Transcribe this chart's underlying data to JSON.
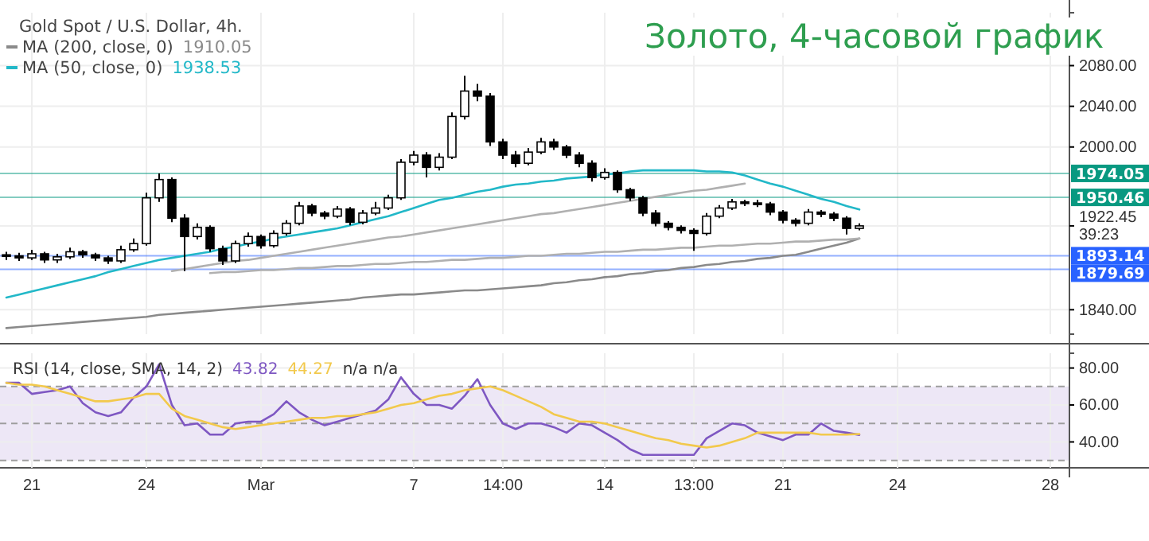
{
  "chart_data": [
    {
      "type": "candlestick",
      "title": "Gold Spot / U.S. Dollar, 4h.",
      "subtitle": "Золото, 4-часовой график",
      "legend": "top left",
      "grid": true,
      "categories": [
        null,
        null,
        null,
        null,
        null,
        null,
        null,
        null,
        null,
        null,
        null,
        null,
        null,
        null,
        null,
        null,
        null,
        null,
        null,
        null,
        null,
        null,
        null,
        null,
        null,
        null,
        null,
        null,
        null,
        null,
        null,
        null,
        null,
        null,
        null,
        null,
        null,
        null,
        null,
        null,
        null,
        null,
        null,
        null,
        null,
        null,
        null,
        null,
        null,
        null,
        null,
        null,
        null,
        null,
        null,
        null,
        null,
        null,
        null,
        null,
        null,
        null,
        null,
        null,
        null,
        null,
        null,
        null,
        null,
        null,
        null,
        null,
        null,
        null,
        null,
        null,
        null,
        null,
        null,
        null,
        null,
        null,
        null,
        null
      ],
      "ylim": [
        1816,
        2132
      ],
      "yticks": [
        {
          "value": 1840,
          "label": "1840.00"
        },
        {
          "value": 1922.45,
          "label": "1922.45\n39:23"
        },
        {
          "value": 2000,
          "label": "2000.00"
        },
        {
          "value": 2040,
          "label": "2040.00"
        },
        {
          "value": 2080,
          "label": "2080.00"
        }
      ],
      "ohlc": [
        [
          1894,
          1897,
          1889,
          1893
        ],
        [
          1893,
          1896,
          1888,
          1891
        ],
        [
          1891,
          1899,
          1889,
          1895
        ],
        [
          1895,
          1897,
          1886,
          1889
        ],
        [
          1889,
          1895,
          1886,
          1892
        ],
        [
          1892,
          1901,
          1890,
          1897
        ],
        [
          1897,
          1899,
          1891,
          1894
        ],
        [
          1894,
          1896,
          1888,
          1891
        ],
        [
          1891,
          1893,
          1885,
          1888
        ],
        [
          1888,
          1903,
          1886,
          1899
        ],
        [
          1899,
          1910,
          1897,
          1905
        ],
        [
          1905,
          1955,
          1903,
          1950
        ],
        [
          1950,
          1974,
          1946,
          1968
        ],
        [
          1968,
          1970,
          1926,
          1930
        ],
        [
          1930,
          1934,
          1878,
          1912
        ],
        [
          1912,
          1925,
          1909,
          1921
        ],
        [
          1921,
          1923,
          1897,
          1900
        ],
        [
          1900,
          1903,
          1884,
          1888
        ],
        [
          1888,
          1908,
          1886,
          1905
        ],
        [
          1905,
          1916,
          1902,
          1912
        ],
        [
          1912,
          1914,
          1900,
          1903
        ],
        [
          1903,
          1918,
          1901,
          1915
        ],
        [
          1915,
          1928,
          1913,
          1925
        ],
        [
          1925,
          1946,
          1923,
          1942
        ],
        [
          1942,
          1944,
          1932,
          1935
        ],
        [
          1935,
          1937,
          1929,
          1932
        ],
        [
          1932,
          1942,
          1930,
          1939
        ],
        [
          1939,
          1941,
          1923,
          1926
        ],
        [
          1926,
          1938,
          1924,
          1935
        ],
        [
          1935,
          1946,
          1933,
          1940
        ],
        [
          1940,
          1953,
          1938,
          1950
        ],
        [
          1950,
          1988,
          1948,
          1985
        ],
        [
          1985,
          1996,
          1982,
          1992
        ],
        [
          1992,
          1995,
          1970,
          1980
        ],
        [
          1980,
          1994,
          1977,
          1990
        ],
        [
          1990,
          2034,
          1988,
          2030
        ],
        [
          2030,
          2070,
          2027,
          2055
        ],
        [
          2055,
          2062,
          2045,
          2050
        ],
        [
          2050,
          2053,
          2001,
          2005
        ],
        [
          2005,
          2008,
          1988,
          1992
        ],
        [
          1992,
          1996,
          1980,
          1984
        ],
        [
          1984,
          1999,
          1982,
          1995
        ],
        [
          1995,
          2009,
          1993,
          2005
        ],
        [
          2005,
          2008,
          1997,
          2000
        ],
        [
          2000,
          2002,
          1989,
          1992
        ],
        [
          1992,
          1995,
          1980,
          1984
        ],
        [
          1984,
          1987,
          1966,
          1970
        ],
        [
          1970,
          1979,
          1968,
          1975
        ],
        [
          1975,
          1977,
          1955,
          1958
        ],
        [
          1958,
          1960,
          1947,
          1950
        ],
        [
          1950,
          1952,
          1932,
          1935
        ],
        [
          1935,
          1938,
          1922,
          1925
        ],
        [
          1925,
          1927,
          1918,
          1921
        ],
        [
          1921,
          1923,
          1915,
          1918
        ],
        [
          1918,
          1920,
          1898,
          1915
        ],
        [
          1915,
          1935,
          1913,
          1932
        ],
        [
          1932,
          1943,
          1930,
          1940
        ],
        [
          1940,
          1949,
          1938,
          1946
        ],
        [
          1946,
          1948,
          1942,
          1945
        ],
        [
          1945,
          1948,
          1941,
          1944
        ],
        [
          1944,
          1946,
          1933,
          1936
        ],
        [
          1936,
          1938,
          1925,
          1928
        ],
        [
          1928,
          1930,
          1922,
          1925
        ],
        [
          1925,
          1939,
          1923,
          1936
        ],
        [
          1936,
          1938,
          1931,
          1934
        ],
        [
          1934,
          1936,
          1927,
          1930
        ],
        [
          1930,
          1932,
          1914,
          1920
        ],
        [
          1920,
          1925,
          1918,
          1922.45
        ],
        null,
        null,
        null,
        null,
        null,
        null,
        null,
        null,
        null,
        null,
        null,
        null,
        null,
        null,
        null,
        null
      ],
      "series": [
        {
          "type": "line",
          "name": "MA (200, close, 0)",
          "color": "#8a8a8a",
          "values": [
            1822,
            1823,
            1824,
            1825,
            1826,
            1827,
            1828,
            1829,
            1830,
            1831,
            1832,
            1833,
            1835,
            1836,
            1837,
            1838,
            1839,
            1840,
            1841,
            1842,
            1843,
            1844,
            1845,
            1846,
            1847,
            1848,
            1849,
            1850,
            1852,
            1853,
            1854,
            1855,
            1855,
            1856,
            1857,
            1858,
            1859,
            1859,
            1860,
            1861,
            1862,
            1863,
            1864,
            1866,
            1867,
            1869,
            1870,
            1872,
            1873,
            1875,
            1876,
            1878,
            1879,
            1881,
            1882,
            1884,
            1885,
            1887,
            1888,
            1890,
            1891,
            1893,
            1894,
            1897,
            1900,
            1903,
            1906,
            1910.05,
            null,
            null,
            null,
            null,
            null,
            null,
            null,
            null,
            null,
            null,
            null,
            null,
            null,
            null,
            null,
            null
          ]
        },
        {
          "type": "line",
          "name": "MA (50, close, 0)",
          "color": "#22b8c8",
          "values": [
            1852,
            1855,
            1858,
            1861,
            1864,
            1867,
            1870,
            1873,
            1877,
            1880,
            1883,
            1886,
            1889,
            1891,
            1893,
            1895,
            1897,
            1900,
            1902,
            1905,
            1907,
            1910,
            1912,
            1914,
            1916,
            1918,
            1920,
            1923,
            1926,
            1929,
            1932,
            1936,
            1940,
            1944,
            1948,
            1950,
            1953,
            1956,
            1958,
            1961,
            1963,
            1964,
            1966,
            1967,
            1969,
            1970,
            1971,
            1973,
            1974,
            1976,
            1977,
            1977,
            1977,
            1977,
            1977,
            1976,
            1976,
            1975,
            1972,
            1968,
            1964,
            1961,
            1957,
            1953,
            1949,
            1946,
            1942,
            1938.53,
            null,
            null,
            null,
            null,
            null,
            null,
            null,
            null,
            null,
            null,
            null,
            null,
            null,
            null,
            null,
            null
          ]
        },
        {
          "type": "line",
          "color": "#b0b0b0",
          "values": [
            null,
            null,
            null,
            null,
            null,
            null,
            null,
            null,
            null,
            null,
            null,
            null,
            null,
            1878,
            1880,
            1882,
            1884,
            1886,
            1888,
            1889,
            1891,
            1893,
            1895,
            1897,
            1899,
            1901,
            1903,
            1905,
            1907,
            1909,
            1911,
            1912,
            1914,
            1916,
            1918,
            1920,
            1922,
            1924,
            1926,
            1928,
            1930,
            1932,
            1934,
            1935,
            1937,
            1939,
            1941,
            1943,
            1945,
            1947,
            1949,
            1951,
            1953,
            1955,
            1957,
            1958,
            1960,
            1962,
            1964,
            null,
            null,
            null,
            null,
            null,
            null,
            null,
            null,
            null,
            null,
            null,
            null,
            null,
            null,
            null,
            null,
            null,
            null,
            null,
            null,
            null,
            null,
            null,
            null,
            null
          ]
        },
        {
          "type": "line",
          "color": "#b0b0b0",
          "values": [
            null,
            null,
            null,
            null,
            null,
            null,
            null,
            null,
            null,
            null,
            null,
            null,
            null,
            null,
            null,
            null,
            1876,
            1877,
            1877,
            1878,
            1879,
            1879,
            1880,
            1881,
            1881,
            1882,
            1883,
            1883,
            1884,
            1885,
            1885,
            1886,
            1887,
            1887,
            1888,
            1889,
            1889,
            1890,
            1891,
            1891,
            1892,
            1893,
            1893,
            1894,
            1895,
            1895,
            1896,
            1897,
            1897,
            1898,
            1899,
            1899,
            1900,
            1901,
            1901,
            1902,
            1903,
            1903,
            1904,
            1905,
            1905,
            1906,
            1907,
            1907,
            1908,
            1909,
            1909,
            1910,
            null,
            null,
            null,
            null,
            null,
            null,
            null,
            null,
            null,
            null,
            null,
            null,
            null,
            null,
            null,
            null
          ]
        }
      ],
      "ref_lines": [
        {
          "axis": "y",
          "value": 1974.05,
          "label": "1974.05",
          "color": "#089981"
        },
        {
          "axis": "y",
          "value": 1950.46,
          "label": "1950.46",
          "color": "#089981"
        },
        {
          "axis": "y",
          "value": 1893.14,
          "label": "1893.14",
          "color": "#2962ff"
        },
        {
          "axis": "y",
          "value": 1879.69,
          "label": "1879.69",
          "color": "#2962ff"
        }
      ],
      "annotations": [
        "1910.05",
        "1938.53"
      ]
    },
    {
      "type": "line",
      "title": "RSI (14, close, SMA, 14, 2)",
      "grid": true,
      "categories": [
        null,
        null,
        "21",
        null,
        null,
        null,
        null,
        null,
        null,
        null,
        null,
        "24",
        null,
        null,
        null,
        null,
        null,
        null,
        null,
        null,
        "Mar",
        null,
        null,
        null,
        null,
        null,
        null,
        null,
        null,
        null,
        null,
        null,
        "7",
        null,
        null,
        null,
        null,
        null,
        null,
        "14:00",
        null,
        null,
        null,
        null,
        null,
        null,
        null,
        "14",
        null,
        null,
        null,
        null,
        null,
        null,
        "13:00",
        null,
        null,
        null,
        null,
        null,
        null,
        "21",
        null,
        null,
        null,
        null,
        null,
        null,
        null,
        null,
        "24",
        null,
        null,
        null,
        null,
        null,
        null,
        null,
        null,
        null,
        null,
        null,
        "28",
        null
      ],
      "ylim": [
        26,
        88
      ],
      "yticks": [
        {
          "value": 40,
          "label": "40.00"
        },
        {
          "value": 60,
          "label": "60.00"
        },
        {
          "value": 80,
          "label": "80.00"
        }
      ],
      "series": [
        {
          "color": "#7e57c2",
          "values": [
            72,
            72,
            66,
            67,
            68,
            70,
            61,
            56,
            54,
            56,
            64,
            70,
            82,
            60,
            49,
            50,
            44,
            44,
            50,
            51,
            51,
            55,
            62,
            56,
            52,
            49,
            51,
            53,
            55,
            57,
            63,
            75,
            66,
            60,
            60,
            58,
            65,
            74,
            60,
            50,
            47,
            50,
            50,
            48,
            45,
            50,
            49,
            45,
            41,
            36,
            33,
            33,
            33,
            33,
            33,
            42,
            46,
            50,
            49,
            45,
            43,
            41,
            44,
            44,
            50,
            46,
            45,
            43.82,
            null,
            null,
            null,
            null,
            null,
            null,
            null,
            null,
            null,
            null,
            null,
            null,
            null,
            null,
            null,
            null
          ]
        },
        {
          "color": "#f2c94c",
          "values": [
            72,
            71,
            71,
            70,
            68,
            66,
            64,
            62,
            62,
            63,
            64,
            66,
            66,
            58,
            54,
            52,
            50,
            48,
            47,
            48,
            49,
            50,
            51,
            52,
            53,
            53,
            54,
            54,
            55,
            56,
            58,
            60,
            61,
            63,
            65,
            66,
            68,
            69,
            70,
            68,
            65,
            62,
            59,
            55,
            53,
            51,
            51,
            50,
            48,
            46,
            44,
            42,
            41,
            39,
            38,
            37,
            38,
            40,
            42,
            45,
            45,
            45,
            45,
            45,
            44,
            44,
            44,
            44.27,
            null,
            null,
            null,
            null,
            null,
            null,
            null,
            null,
            null,
            null,
            null,
            null,
            null,
            null,
            null,
            null
          ]
        }
      ],
      "bands": [
        {
          "axis": "y",
          "from": 30,
          "to": 70,
          "color": "#ede7f6"
        }
      ],
      "ref_lines": [
        {
          "axis": "y",
          "value": 70,
          "line_style": "dashed",
          "color": "#9e9e9e"
        },
        {
          "axis": "y",
          "value": 50,
          "line_style": "dashed",
          "color": "#9e9e9e"
        },
        {
          "axis": "y",
          "value": 30,
          "line_style": "dashed",
          "color": "#9e9e9e"
        }
      ],
      "annotations": [
        "43.82",
        "44.27",
        "n/a n/a"
      ]
    }
  ]
}
